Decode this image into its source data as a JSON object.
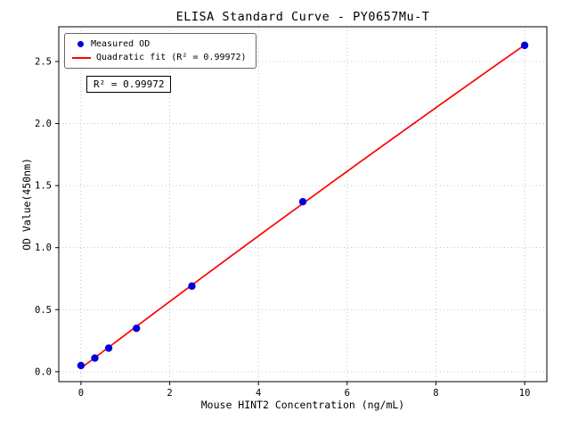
{
  "chart_data": {
    "type": "scatter",
    "title": "ELISA Standard Curve - PY0657Mu-T",
    "xlabel": "Mouse HINT2 Concentration (ng/mL)",
    "ylabel": "OD Value(450nm)",
    "xlim": [
      -0.5,
      10.5
    ],
    "ylim": [
      -0.08,
      2.78
    ],
    "xticks": [
      0,
      2,
      4,
      6,
      8,
      10
    ],
    "yticks": [
      0.0,
      0.5,
      1.0,
      1.5,
      2.0,
      2.5
    ],
    "grid": true,
    "legend_position": "upper-left",
    "annotation": "R² = 0.99972",
    "r_squared": "0.99972",
    "colors": {
      "scatter": "#0000dd",
      "fit_line": "#ff0000",
      "grid": "#b5b5b5",
      "axis": "#000000"
    },
    "series": [
      {
        "name": "Measured OD",
        "type": "scatter",
        "color": "#0000dd",
        "x": [
          0,
          0.313,
          0.625,
          1.25,
          2.5,
          5,
          10
        ],
        "y": [
          0.05,
          0.11,
          0.19,
          0.35,
          0.69,
          1.37,
          2.63
        ]
      },
      {
        "name": "Quadratic fit (R² = 0.99972)",
        "type": "line",
        "fit": "quadratic",
        "color": "#ff0000"
      }
    ]
  }
}
